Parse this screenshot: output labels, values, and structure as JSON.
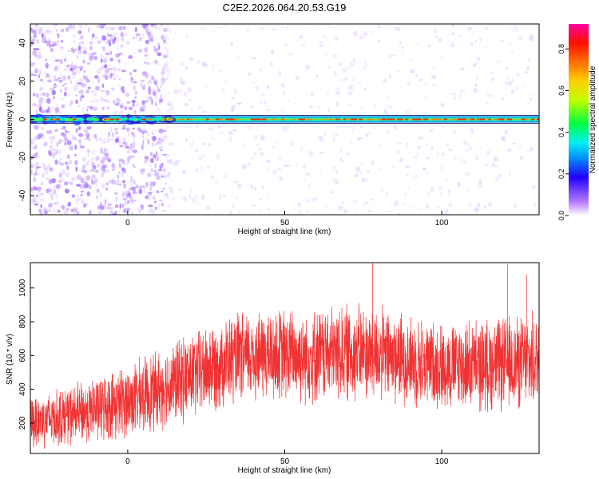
{
  "title": "C2E2.2026.064.20.53.G19",
  "chart_data": [
    {
      "type": "heatmap",
      "xlabel": "Height of straight line (km)",
      "ylabel": "Frequency (Hz)",
      "xlim": [
        -31,
        131
      ],
      "ylim": [
        -50,
        50
      ],
      "x_ticks": [
        0,
        50,
        100
      ],
      "y_ticks": [
        -40,
        -20,
        0,
        20,
        40
      ],
      "colorbar": {
        "label": "Normalized spectral amplitude",
        "range": [
          0,
          0.92
        ],
        "ticks": [
          0.0,
          0.2,
          0.4,
          0.6,
          0.8
        ]
      },
      "dominant_frequency_hz": 0,
      "band_segments": [
        {
          "x_start": -31,
          "x_end": -20,
          "amplitude": 0.5
        },
        {
          "x_start": -20,
          "x_end": -10,
          "amplitude": 0.35
        },
        {
          "x_start": -10,
          "x_end": 10,
          "amplitude": 0.3
        },
        {
          "x_start": 10,
          "x_end": 131,
          "amplitude": 0.85
        }
      ],
      "grid": false
    },
    {
      "type": "line",
      "xlabel": "Height of straight line (km)",
      "ylabel": "SNR (10 * v/v)",
      "xlim": [
        -31,
        131
      ],
      "ylim": [
        20,
        1150
      ],
      "x_ticks": [
        0,
        50,
        100
      ],
      "y_ticks": [
        200,
        400,
        600,
        800,
        1000
      ],
      "color": "#f03232",
      "series": [
        {
          "x": [
            -31,
            -20,
            -10,
            0,
            10,
            20,
            30,
            40,
            50,
            60,
            70,
            80,
            90,
            100,
            110,
            120,
            131
          ],
          "mean": [
            210,
            240,
            280,
            330,
            400,
            480,
            560,
            600,
            600,
            600,
            620,
            610,
            570,
            540,
            540,
            550,
            570
          ],
          "spread": [
            150,
            160,
            180,
            200,
            220,
            240,
            250,
            250,
            260,
            260,
            270,
            260,
            250,
            240,
            250,
            260,
            260
          ],
          "peaks": [
            {
              "x": 78,
              "y": 1150
            },
            {
              "x": 121,
              "y": 1140
            },
            {
              "x": 127,
              "y": 1080
            }
          ]
        }
      ],
      "grid": false
    }
  ]
}
